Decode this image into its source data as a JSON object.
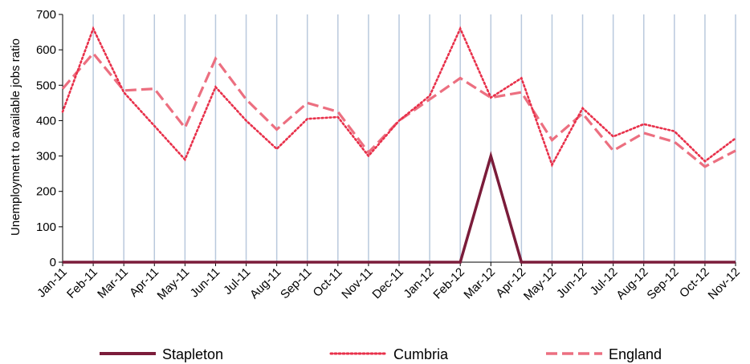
{
  "chart_data": {
    "type": "line",
    "title": "",
    "xlabel": "",
    "ylabel": "Unemployment to available jobs ratio",
    "ylim": [
      0,
      700
    ],
    "yticks": [
      0,
      100,
      200,
      300,
      400,
      500,
      600,
      700
    ],
    "grid": "vertical",
    "legend_position": "bottom",
    "categories": [
      "Jan-11",
      "Feb-11",
      "Mar-11",
      "Apr-11",
      "May-11",
      "Jun-11",
      "Jul-11",
      "Aug-11",
      "Sep-11",
      "Oct-11",
      "Nov-11",
      "Dec-11",
      "Jan-12",
      "Feb-12",
      "Mar-12",
      "Apr-12",
      "May-12",
      "Jun-12",
      "Jul-12",
      "Aug-12",
      "Sep-12",
      "Oct-12",
      "Nov-12"
    ],
    "series": [
      {
        "name": "Stapleton",
        "style": "solid",
        "color": "#7b1c3a",
        "values": [
          0,
          0,
          0,
          0,
          0,
          0,
          0,
          0,
          0,
          0,
          0,
          0,
          0,
          0,
          300,
          0,
          0,
          0,
          0,
          0,
          0,
          0,
          0
        ]
      },
      {
        "name": "Cumbria",
        "style": "dotted",
        "color": "#e8304a",
        "values": [
          425,
          660,
          480,
          385,
          290,
          495,
          400,
          320,
          405,
          410,
          300,
          400,
          470,
          660,
          465,
          520,
          275,
          435,
          355,
          390,
          370,
          285,
          350
        ]
      },
      {
        "name": "England",
        "style": "dashed",
        "color": "#ec6f80",
        "values": [
          490,
          590,
          485,
          490,
          380,
          575,
          460,
          375,
          450,
          425,
          310,
          400,
          460,
          520,
          465,
          480,
          345,
          420,
          315,
          365,
          340,
          270,
          315
        ]
      }
    ]
  }
}
